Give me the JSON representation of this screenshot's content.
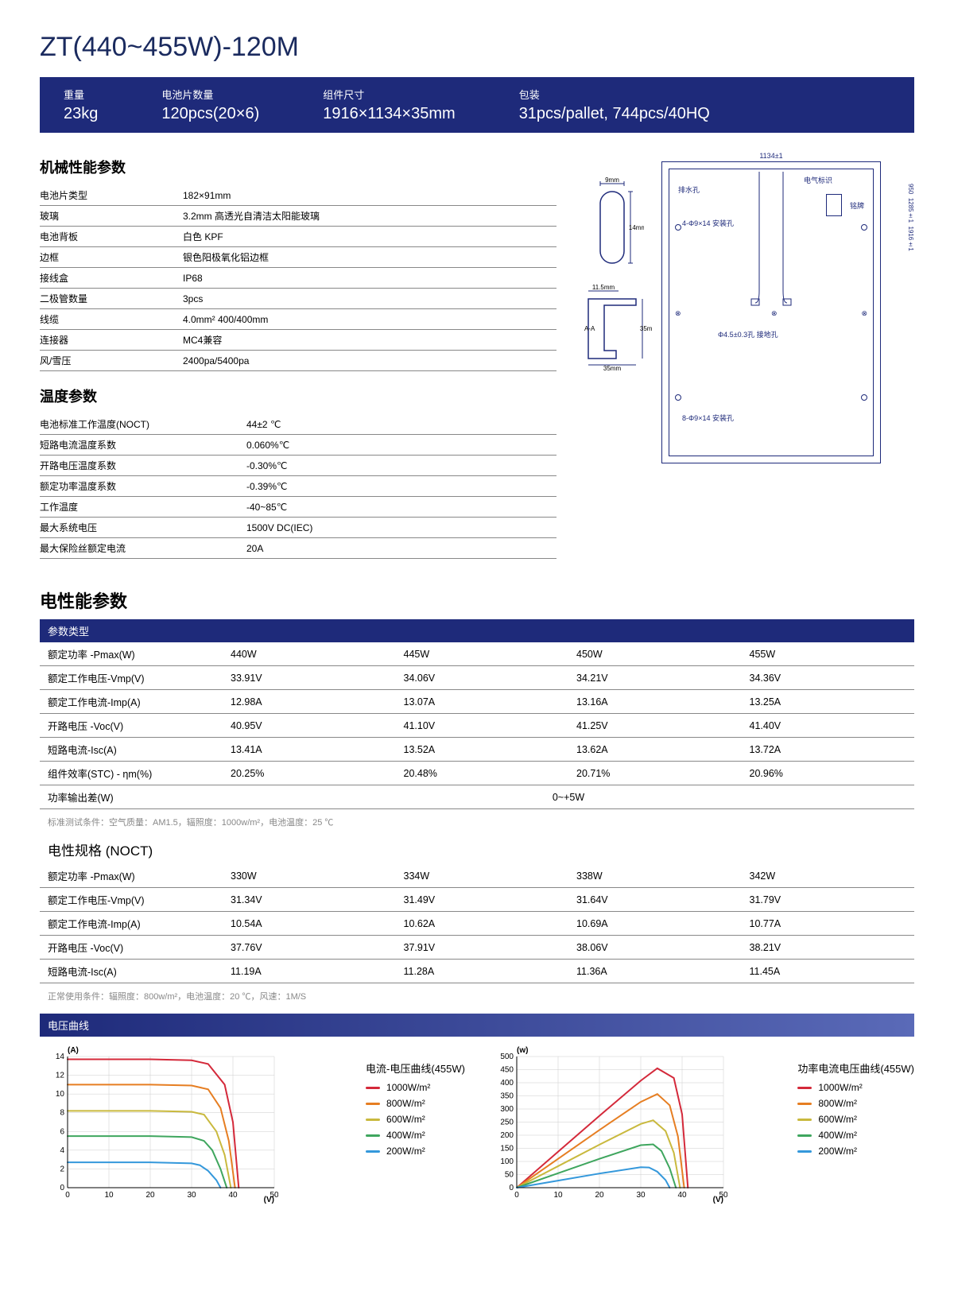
{
  "title": "ZT(440~455W)-120M",
  "header": [
    {
      "label": "重量",
      "value": "23kg"
    },
    {
      "label": "电池片数量",
      "value": "120pcs(20×6)"
    },
    {
      "label": "组件尺寸",
      "value": "1916×1134×35mm"
    },
    {
      "label": "包装",
      "value": "31pcs/pallet, 744pcs/40HQ"
    }
  ],
  "mech": {
    "title": "机械性能参数",
    "rows": [
      [
        "电池片类型",
        "182×91mm"
      ],
      [
        "玻璃",
        "3.2mm 高透光自清洁太阳能玻璃"
      ],
      [
        "电池背板",
        "白色 KPF"
      ],
      [
        "边框",
        "银色阳极氧化铝边框"
      ],
      [
        "接线盒",
        "IP68"
      ],
      [
        "二极管数量",
        "3pcs"
      ],
      [
        "线缆",
        "4.0mm² 400/400mm"
      ],
      [
        "连接器",
        "MC4兼容"
      ],
      [
        "风/雪压",
        "2400pa/5400pa"
      ]
    ]
  },
  "temp": {
    "title": "温度参数",
    "rows": [
      [
        "电池标准工作温度(NOCT)",
        "44±2 ℃"
      ],
      [
        "短路电流温度系数",
        "0.060%℃"
      ],
      [
        "开路电压温度系数",
        "-0.30%℃"
      ],
      [
        "额定功率温度系数",
        "-0.39%℃"
      ],
      [
        "工作温度",
        "-40~85℃"
      ],
      [
        "最大系统电压",
        "1500V DC(IEC)"
      ],
      [
        "最大保险丝额定电流",
        "20A"
      ]
    ]
  },
  "elec": {
    "title": "电性能参数",
    "band": "参数类型",
    "rows": [
      [
        "额定功率 -Pmax(W)",
        "440W",
        "445W",
        "450W",
        "455W"
      ],
      [
        "额定工作电压-Vmp(V)",
        "33.91V",
        "34.06V",
        "34.21V",
        "34.36V"
      ],
      [
        "额定工作电流-Imp(A)",
        "12.98A",
        "13.07A",
        "13.16A",
        "13.25A"
      ],
      [
        "开路电压 -Voc(V)",
        "40.95V",
        "41.10V",
        "41.25V",
        "41.40V"
      ],
      [
        "短路电流-Isc(A)",
        "13.41A",
        "13.52A",
        "13.62A",
        "13.72A"
      ],
      [
        "组件效率(STC) - ηm(%)",
        "20.25%",
        "20.48%",
        "20.71%",
        "20.96%"
      ]
    ],
    "tolerance_label": "功率输出差(W)",
    "tolerance_value": "0~+5W",
    "footnote": "标准测试条件：空气质量：AM1.5，辐照度：1000w/m²，电池温度：25 ℃"
  },
  "noct": {
    "title": "电性规格 (NOCT)",
    "rows": [
      [
        "额定功率 -Pmax(W)",
        "330W",
        "334W",
        "338W",
        "342W"
      ],
      [
        "额定工作电压-Vmp(V)",
        "31.34V",
        "31.49V",
        "31.64V",
        "31.79V"
      ],
      [
        "额定工作电流-Imp(A)",
        "10.54A",
        "10.62A",
        "10.69A",
        "10.77A"
      ],
      [
        "开路电压 -Voc(V)",
        "37.76V",
        "37.91V",
        "38.06V",
        "38.21V"
      ],
      [
        "短路电流-Isc(A)",
        "11.19A",
        "11.28A",
        "11.36A",
        "11.45A"
      ]
    ],
    "footnote": "正常使用条件：辐照度：800w/m²，电池温度：20 ℃，风速：1M/S"
  },
  "curves": {
    "band": "电压曲线",
    "chart1": {
      "title": "电流-电压曲线(455W)",
      "ylabel": "(A)",
      "xlabel": "(V)",
      "xlim": [
        0,
        50
      ],
      "ylim": [
        0,
        14
      ],
      "xticks": [
        0,
        10,
        20,
        30,
        40,
        50
      ],
      "yticks": [
        0,
        2,
        4,
        6,
        8,
        10,
        12,
        14
      ],
      "series": [
        {
          "label": "1000W/m²",
          "color": "#d4293a",
          "data": [
            [
              0,
              13.7
            ],
            [
              10,
              13.7
            ],
            [
              20,
              13.7
            ],
            [
              30,
              13.6
            ],
            [
              34,
              13.2
            ],
            [
              38,
              11
            ],
            [
              40,
              7
            ],
            [
              41.4,
              0
            ]
          ]
        },
        {
          "label": "800W/m²",
          "color": "#e67e22",
          "data": [
            [
              0,
              11
            ],
            [
              10,
              11
            ],
            [
              20,
              11
            ],
            [
              30,
              10.9
            ],
            [
              34,
              10.5
            ],
            [
              37,
              8.5
            ],
            [
              39,
              5
            ],
            [
              40.5,
              0
            ]
          ]
        },
        {
          "label": "600W/m²",
          "color": "#c9b93e",
          "data": [
            [
              0,
              8.2
            ],
            [
              10,
              8.2
            ],
            [
              20,
              8.2
            ],
            [
              30,
              8.1
            ],
            [
              33,
              7.8
            ],
            [
              36,
              6
            ],
            [
              38,
              3.5
            ],
            [
              39.5,
              0
            ]
          ]
        },
        {
          "label": "400W/m²",
          "color": "#3fa65e",
          "data": [
            [
              0,
              5.5
            ],
            [
              10,
              5.5
            ],
            [
              20,
              5.5
            ],
            [
              30,
              5.4
            ],
            [
              33,
              5
            ],
            [
              35,
              4
            ],
            [
              37,
              2
            ],
            [
              38.5,
              0
            ]
          ]
        },
        {
          "label": "200W/m²",
          "color": "#3498db",
          "data": [
            [
              0,
              2.7
            ],
            [
              10,
              2.7
            ],
            [
              20,
              2.7
            ],
            [
              30,
              2.6
            ],
            [
              32,
              2.4
            ],
            [
              34,
              1.8
            ],
            [
              36,
              0.8
            ],
            [
              37,
              0
            ]
          ]
        }
      ]
    },
    "chart2": {
      "title": "功率电流电压曲线(455W)",
      "ylabel": "(w)",
      "xlabel": "(V)",
      "xlim": [
        0,
        50
      ],
      "ylim": [
        0,
        500
      ],
      "xticks": [
        0,
        10,
        20,
        30,
        40,
        50
      ],
      "yticks": [
        0,
        50,
        100,
        150,
        200,
        250,
        300,
        350,
        400,
        450,
        500
      ],
      "series": [
        {
          "label": "1000W/m²",
          "color": "#d4293a",
          "data": [
            [
              0,
              0
            ],
            [
              10,
              137
            ],
            [
              20,
              274
            ],
            [
              30,
              408
            ],
            [
              34,
              455
            ],
            [
              38,
              418
            ],
            [
              40,
              280
            ],
            [
              41.4,
              0
            ]
          ]
        },
        {
          "label": "800W/m²",
          "color": "#e67e22",
          "data": [
            [
              0,
              0
            ],
            [
              10,
              110
            ],
            [
              20,
              220
            ],
            [
              30,
              327
            ],
            [
              34,
              357
            ],
            [
              37,
              314
            ],
            [
              39,
              195
            ],
            [
              40.5,
              0
            ]
          ]
        },
        {
          "label": "600W/m²",
          "color": "#c9b93e",
          "data": [
            [
              0,
              0
            ],
            [
              10,
              82
            ],
            [
              20,
              164
            ],
            [
              30,
              243
            ],
            [
              33,
              257
            ],
            [
              36,
              216
            ],
            [
              38,
              133
            ],
            [
              39.5,
              0
            ]
          ]
        },
        {
          "label": "400W/m²",
          "color": "#3fa65e",
          "data": [
            [
              0,
              0
            ],
            [
              10,
              55
            ],
            [
              20,
              110
            ],
            [
              30,
              162
            ],
            [
              33,
              165
            ],
            [
              35,
              140
            ],
            [
              37,
              74
            ],
            [
              38.5,
              0
            ]
          ]
        },
        {
          "label": "200W/m²",
          "color": "#3498db",
          "data": [
            [
              0,
              0
            ],
            [
              10,
              27
            ],
            [
              20,
              54
            ],
            [
              30,
              78
            ],
            [
              32,
              77
            ],
            [
              34,
              61
            ],
            [
              36,
              29
            ],
            [
              37,
              0
            ]
          ]
        }
      ]
    }
  },
  "diagram": {
    "width_label": "1134±1",
    "height_label": "1916±1",
    "detail_labels": [
      "950",
      "1285±1"
    ],
    "slot_w": "9mm",
    "slot_h": "14mm",
    "frame_w": "35mm",
    "frame_h": "35mm",
    "frame_top": "11.5mm",
    "annotations": [
      "排水孔",
      "电气标识",
      "铭牌",
      "4-Φ9×14 安装孔",
      "Φ4.5±0.3孔 接地孔",
      "8-Φ9×14 安装孔"
    ]
  }
}
